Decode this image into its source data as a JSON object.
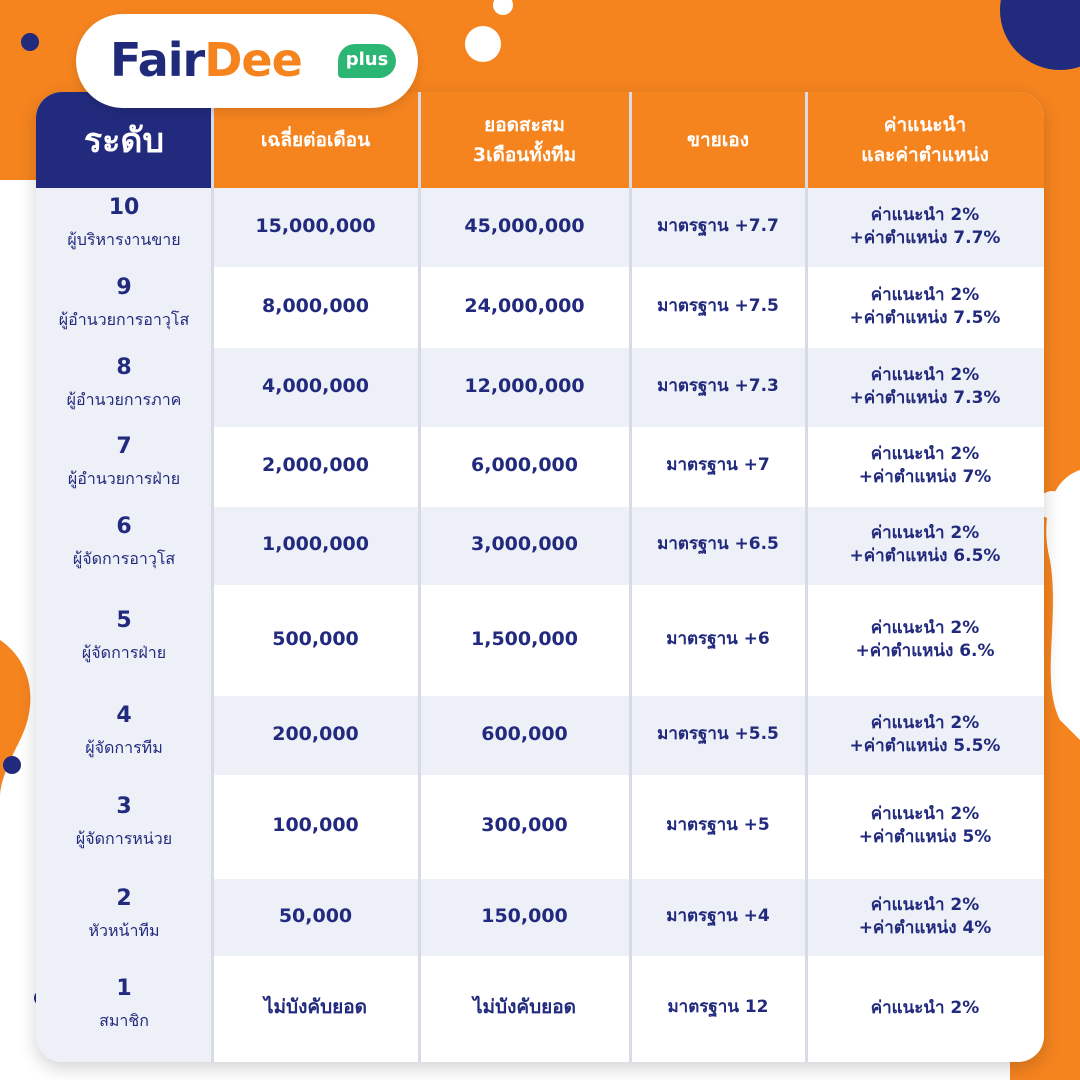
{
  "brand": {
    "name_part1": "Fair",
    "name_part2": "Dee",
    "badge": "plus"
  },
  "colors": {
    "orange": "#f5841f",
    "navy": "#222a7d",
    "shade": "#eef0f7"
  },
  "table": {
    "headers": {
      "level": "ระดับ",
      "monthly_line1": "เฉลี่ยต่อเดือน",
      "team_line1": "ยอดสะสม",
      "team_line2": "3เดือนทั้งทีม",
      "self": "ขายเอง",
      "commission_line1": "ค่าแนะนำ",
      "commission_line2": "และค่าตำแหน่ง"
    },
    "rows": [
      {
        "num": "10",
        "name": "ผู้บริหารงานขาย",
        "monthly": "15,000,000",
        "team": "45,000,000",
        "self": "มาตรฐาน +7.7",
        "comm1": "ค่าแนะนำ 2%",
        "comm2": "+ค่าตำแหน่ง 7.7%"
      },
      {
        "num": "9",
        "name": "ผู้อำนวยการอาวุโส",
        "monthly": "8,000,000",
        "team": "24,000,000",
        "self": "มาตรฐาน +7.5",
        "comm1": "ค่าแนะนำ 2%",
        "comm2": "+ค่าตำแหน่ง 7.5%"
      },
      {
        "num": "8",
        "name": "ผู้อำนวยการภาค",
        "monthly": "4,000,000",
        "team": "12,000,000",
        "self": "มาตรฐาน +7.3",
        "comm1": "ค่าแนะนำ 2%",
        "comm2": "+ค่าตำแหน่ง 7.3%"
      },
      {
        "num": "7",
        "name": "ผู้อำนวยการฝ่าย",
        "monthly": "2,000,000",
        "team": "6,000,000",
        "self": "มาตรฐาน +7",
        "comm1": "ค่าแนะนำ 2%",
        "comm2": "+ค่าตำแหน่ง 7%"
      },
      {
        "num": "6",
        "name": "ผู้จัดการอาวุโส",
        "monthly": "1,000,000",
        "team": "3,000,000",
        "self": "มาตรฐาน +6.5",
        "comm1": "ค่าแนะนำ 2%",
        "comm2": "+ค่าตำแหน่ง 6.5%"
      },
      {
        "num": "5",
        "name": "ผู้จัดการฝ่าย",
        "monthly": "500,000",
        "team": "1,500,000",
        "self": "มาตรฐาน +6",
        "comm1": "ค่าแนะนำ 2%",
        "comm2": "+ค่าตำแหน่ง 6.%"
      },
      {
        "num": "4",
        "name": "ผู้จัดการทีม",
        "monthly": "200,000",
        "team": "600,000",
        "self": "มาตรฐาน +5.5",
        "comm1": "ค่าแนะนำ 2%",
        "comm2": "+ค่าตำแหน่ง 5.5%"
      },
      {
        "num": "3",
        "name": "ผู้จัดการหน่วย",
        "monthly": "100,000",
        "team": "300,000",
        "self": "มาตรฐาน +5",
        "comm1": "ค่าแนะนำ 2%",
        "comm2": "+ค่าตำแหน่ง 5%"
      },
      {
        "num": "2",
        "name": "หัวหน้าทีม",
        "monthly": "50,000",
        "team": "150,000",
        "self": "มาตรฐาน +4",
        "comm1": "ค่าแนะนำ 2%",
        "comm2": "+ค่าตำแหน่ง 4%"
      },
      {
        "num": "1",
        "name": "สมาชิก",
        "monthly": "ไม่บังคับยอด",
        "team": "ไม่บังคับยอด",
        "self": "มาตรฐาน 12",
        "comm1": "ค่าแนะนำ 2%",
        "comm2": ""
      }
    ]
  }
}
